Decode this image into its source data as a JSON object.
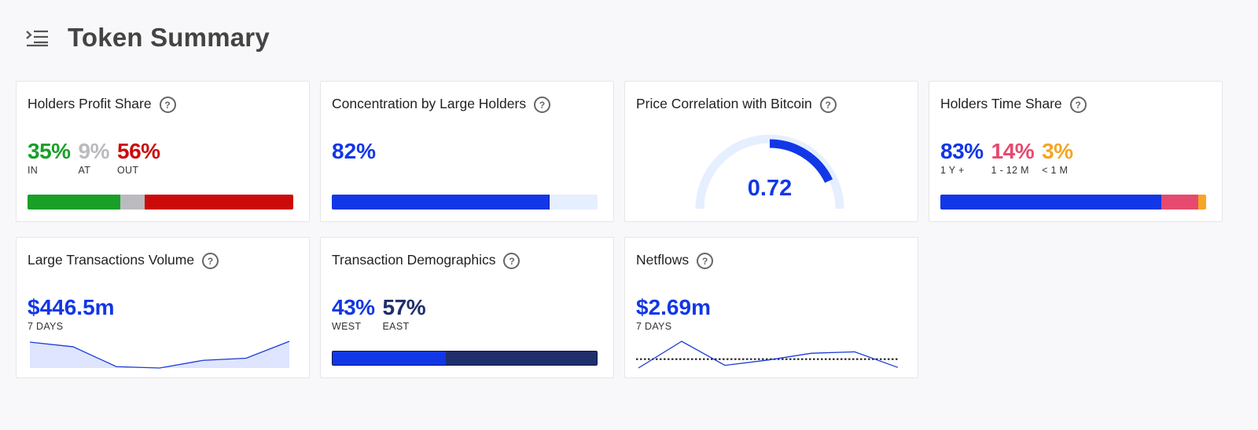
{
  "page": {
    "title": "Token Summary"
  },
  "icons": {
    "menu": "menu-collapse-icon",
    "help": "question-circle-icon"
  },
  "colors": {
    "blue": "#1237e6",
    "green": "#18a027",
    "gray": "#bbbbbf",
    "red": "#cc0a0a",
    "pink": "#e64a6f",
    "orange": "#f5a623",
    "navy": "#1f2f6b",
    "lightblue": "#e6efff"
  },
  "cards": {
    "profit": {
      "title": "Holders Profit Share",
      "help": "?",
      "stats": [
        {
          "value": "35%",
          "label": "IN",
          "fraction": 0.35
        },
        {
          "value": "9%",
          "label": "AT",
          "fraction": 0.09
        },
        {
          "value": "56%",
          "label": "OUT",
          "fraction": 0.56
        }
      ]
    },
    "concentration": {
      "title": "Concentration by Large Holders",
      "help": "?",
      "value": "82%",
      "fraction": 0.82
    },
    "correlation": {
      "title": "Price Correlation with Bitcoin",
      "help": "?",
      "value": "0.72",
      "level": 0.72
    },
    "time_share": {
      "title": "Holders Time Share",
      "help": "?",
      "stats": [
        {
          "value": "83%",
          "label": "1 Y +",
          "fraction": 0.83
        },
        {
          "value": "14%",
          "label": "1 - 12 M",
          "fraction": 0.14
        },
        {
          "value": "3%",
          "label": "< 1 M",
          "fraction": 0.03
        }
      ]
    },
    "large_tx": {
      "title": "Large Transactions Volume",
      "help": "?",
      "value": "$446.5m",
      "period": "7 DAYS",
      "sparkline": [
        0.95,
        0.78,
        0.05,
        0.0,
        0.28,
        0.36,
        0.98
      ]
    },
    "demographics": {
      "title": "Transaction Demographics",
      "help": "?",
      "stats": [
        {
          "value": "43%",
          "label": "WEST",
          "fraction": 0.43
        },
        {
          "value": "57%",
          "label": "EAST",
          "fraction": 0.57
        }
      ]
    },
    "netflows": {
      "title": "Netflows",
      "help": "?",
      "value": "$2.69m",
      "period": "7 DAYS",
      "sparkline": [
        -0.5,
        1.0,
        -0.35,
        -0.05,
        0.33,
        0.41,
        -0.47
      ],
      "baseline": 0
    }
  }
}
